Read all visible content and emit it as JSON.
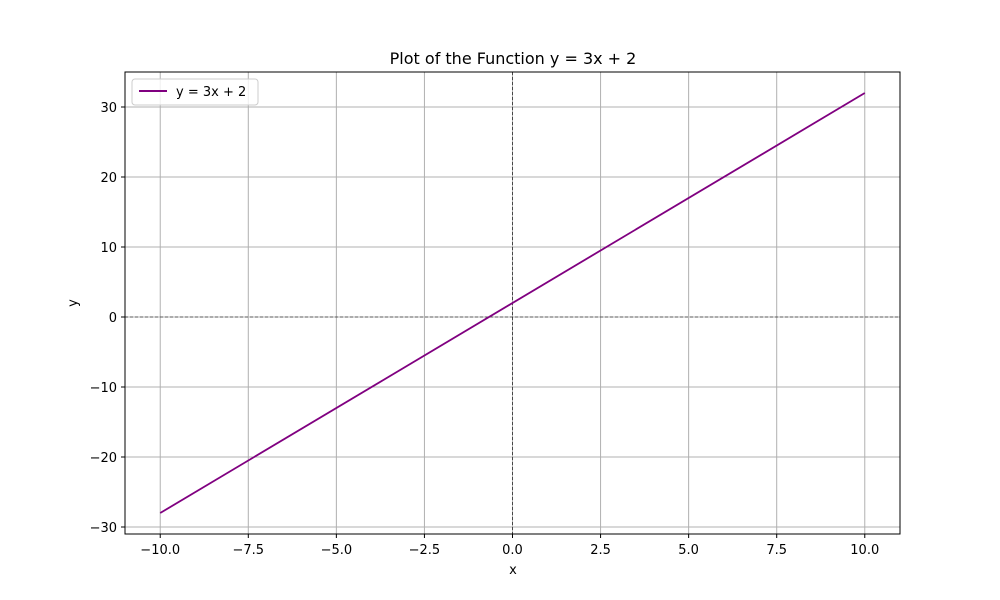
{
  "chart_data": {
    "type": "line",
    "title": "Plot of the Function y = 3x + 2",
    "xlabel": "x",
    "ylabel": "y",
    "xlim": [
      -11,
      11
    ],
    "ylim": [
      -31,
      35
    ],
    "x_ticks": [
      -10,
      -7.5,
      -5,
      -2.5,
      0,
      2.5,
      5,
      7.5,
      10
    ],
    "x_tick_labels": [
      "−10.0",
      "−7.5",
      "−5.0",
      "−2.5",
      "0.0",
      "2.5",
      "5.0",
      "7.5",
      "10.0"
    ],
    "y_ticks": [
      -30,
      -20,
      -10,
      0,
      10,
      20,
      30
    ],
    "y_tick_labels": [
      "−30",
      "−20",
      "−10",
      "0",
      "10",
      "20",
      "30"
    ],
    "grid": true,
    "legend_position": "top-left",
    "reference_lines": {
      "horizontal_at_y": 0,
      "vertical_at_x": 0,
      "style": "dashed",
      "color": "#000000"
    },
    "series": [
      {
        "name": "y = 3x + 2",
        "color": "#800080",
        "x": [
          -10,
          10
        ],
        "y": [
          -28,
          32
        ]
      }
    ]
  }
}
